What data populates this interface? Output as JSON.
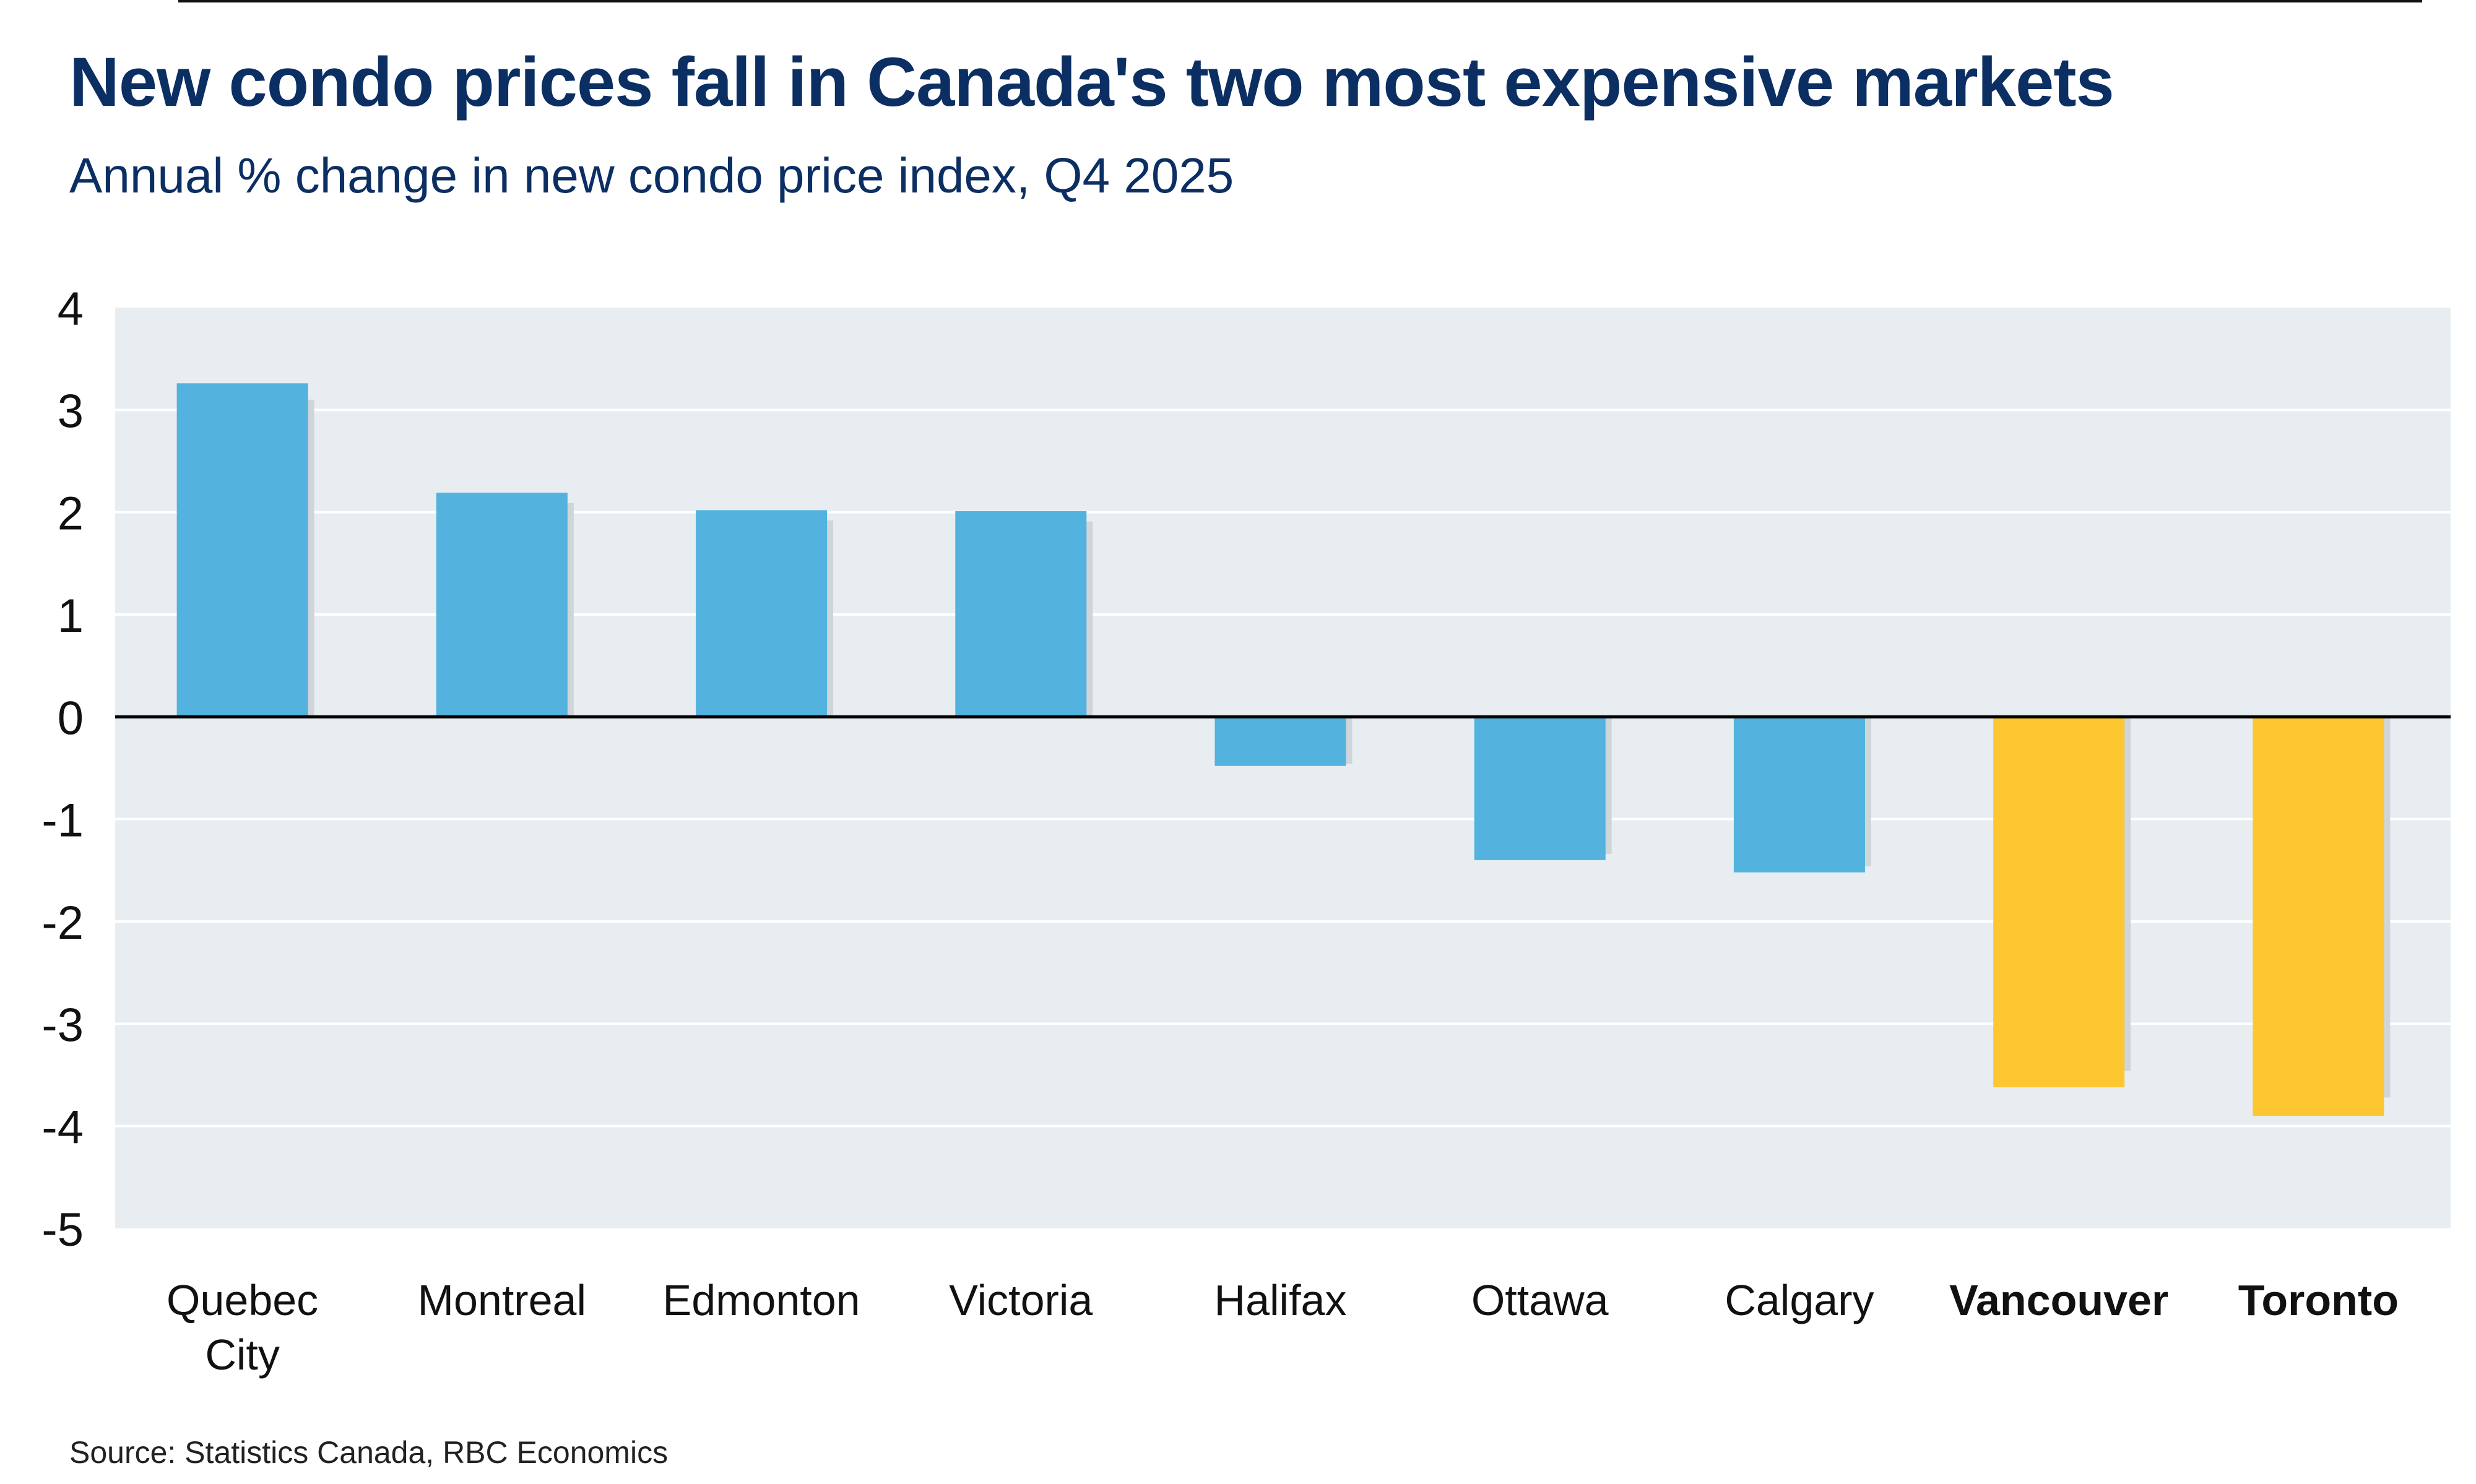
{
  "header": {
    "title": "New condo prices fall in Canada's two most expensive markets",
    "subtitle": "Annual % change in new condo price index, Q4 2025"
  },
  "footer": {
    "source": "Source: Statistics Canada, RBC Economics"
  },
  "colors": {
    "title": "#0b2e63",
    "plot_background": "#e7edf0",
    "gridline": "#ffffff",
    "zero_line": "#000000",
    "bar_default": "#53b2de",
    "bar_highlight": "#fec631",
    "bar_shadow": "#cfd5d9"
  },
  "chart_data": {
    "type": "bar",
    "title": "New condo prices fall in Canada's two most expensive markets",
    "subtitle": "Annual % change in new condo price index, Q4 2025",
    "xlabel": "",
    "ylabel": "",
    "ylim": [
      -5,
      4
    ],
    "yticks": [
      4,
      3,
      2,
      1,
      0,
      -1,
      -2,
      -3,
      -4,
      -5
    ],
    "grid": true,
    "legend": "none",
    "categories": [
      {
        "label": [
          "Quebec",
          "City"
        ],
        "bold": false,
        "highlight": false
      },
      {
        "label": [
          "Montreal"
        ],
        "bold": false,
        "highlight": false
      },
      {
        "label": [
          "Edmonton"
        ],
        "bold": false,
        "highlight": false
      },
      {
        "label": [
          "Victoria"
        ],
        "bold": false,
        "highlight": false
      },
      {
        "label": [
          "Halifax"
        ],
        "bold": false,
        "highlight": false
      },
      {
        "label": [
          "Ottawa"
        ],
        "bold": false,
        "highlight": false
      },
      {
        "label": [
          "Calgary"
        ],
        "bold": false,
        "highlight": false
      },
      {
        "label": [
          "Vancouver"
        ],
        "bold": true,
        "highlight": true
      },
      {
        "label": [
          "Toronto"
        ],
        "bold": true,
        "highlight": true
      }
    ],
    "series": [
      {
        "name": "Annual % change",
        "values": [
          3.26,
          2.19,
          2.02,
          2.01,
          -0.48,
          -1.4,
          -1.52,
          -3.62,
          -3.9
        ]
      },
      {
        "name": "Shadow",
        "values": [
          3.1,
          2.09,
          1.92,
          1.91,
          -0.46,
          -1.34,
          -1.46,
          -3.46,
          -3.72
        ]
      }
    ]
  }
}
